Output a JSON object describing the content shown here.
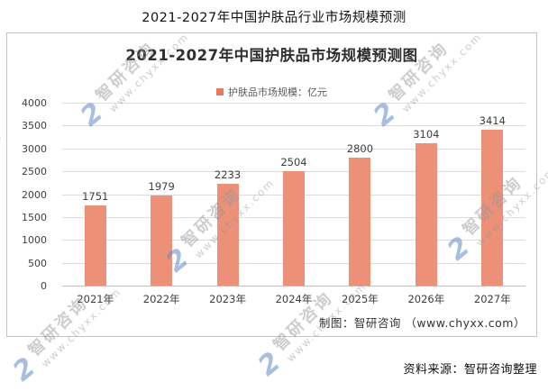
{
  "page": {
    "title": "2021-2027年中国护肤品行业市场规模预测",
    "source_note": "资料来源：智研咨询整理"
  },
  "chart": {
    "title": "2021-2027年中国护肤品市场规模预测图",
    "legend_label": "护肤品市场规模：亿元",
    "credit": "制图：智研咨询 （www.chyxx.com）",
    "bar_color": "#EC9078",
    "legend_color": "#E8795B",
    "gridline_color": "#DCDCDC"
  },
  "watermark": {
    "brand": "智研咨询",
    "url": "www.chyxx.com",
    "logo_glyph": "2",
    "logo_color": "#6089C6"
  },
  "chart_data": {
    "type": "bar",
    "title": "2021-2027年中国护肤品市场规模预测图",
    "series_name": "护肤品市场规模：亿元",
    "categories": [
      "2021年",
      "2022年",
      "2023年",
      "2024年",
      "2025年",
      "2026年",
      "2027年"
    ],
    "values": [
      1751,
      1979,
      2233,
      2504,
      2800,
      3104,
      3414
    ],
    "unit": "亿元",
    "xlabel": "",
    "ylabel": "",
    "ylim": [
      0,
      4000
    ],
    "yticks": [
      0,
      500,
      1000,
      1500,
      2000,
      2500,
      3000,
      3500,
      4000
    ],
    "grid": true,
    "legend_position": "top-center",
    "data_labels": true
  }
}
